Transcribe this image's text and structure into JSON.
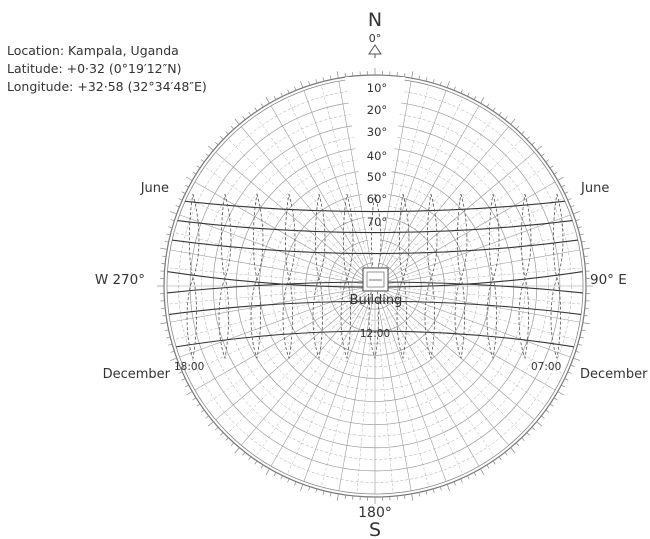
{
  "location_info": {
    "location": "Location: Kampala, Uganda",
    "latitude": "Latitude: +0·32 (0°19′12″N)",
    "longitude": "Longitude: +32·58 (32°34′48″E)"
  },
  "compass": {
    "north_letter": "N",
    "north_degree": "0°",
    "south_letter": "S",
    "south_degree": "180°",
    "west_label": "W 270°",
    "east_label": "90° E"
  },
  "altitude_labels": [
    "10°",
    "20°",
    "30°",
    "40°",
    "50°",
    "60°",
    "70°"
  ],
  "month_labels": {
    "june_left": "June",
    "june_right": "June",
    "december_left": "December",
    "december_right": "December"
  },
  "time_labels": {
    "left": "18:00",
    "noon": "12:00",
    "right": "07:00"
  },
  "building_label": "Building",
  "colors": {
    "line": "#333333",
    "grid": "#9a9a9a",
    "background": "#ffffff"
  }
}
